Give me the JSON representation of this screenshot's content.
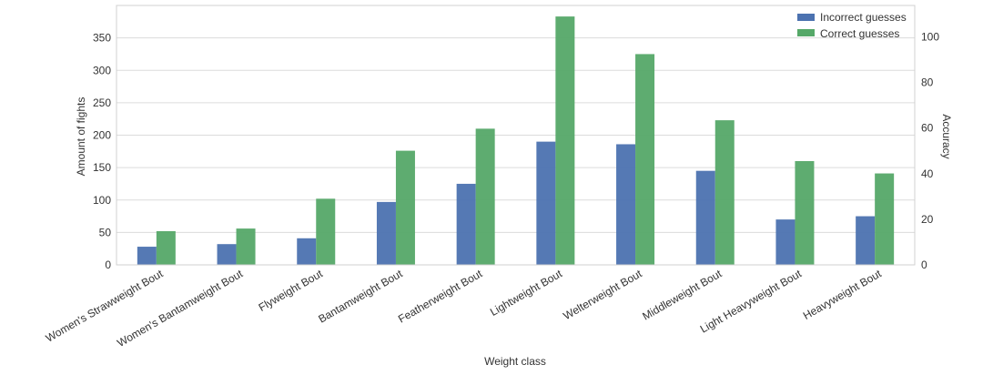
{
  "chart_data": {
    "type": "bar",
    "title": "",
    "xlabel": "Weight class",
    "ylabel": "Amount of fights",
    "y2label": "Accuracy",
    "categories": [
      "Women's Strawweight Bout",
      "Women's Bantamweight Bout",
      "Flyweight Bout",
      "Bantamweight Bout",
      "Featherweight Bout",
      "Lightweight Bout",
      "Welterweight Bout",
      "Middleweight Bout",
      "Light Heavyweight Bout",
      "Heavyweight Bout"
    ],
    "series": [
      {
        "name": "Incorrect guesses",
        "color": "#4c72b0",
        "values": [
          28,
          32,
          41,
          97,
          125,
          190,
          186,
          145,
          70,
          75
        ]
      },
      {
        "name": "Correct guesses",
        "color": "#55a868",
        "values": [
          52,
          56,
          102,
          176,
          210,
          383,
          325,
          223,
          160,
          141
        ]
      }
    ],
    "ylim": [
      0,
      400
    ],
    "yticks": [
      0,
      50,
      100,
      150,
      200,
      250,
      300,
      350
    ],
    "y2lim": [
      0,
      113.8
    ],
    "y2ticks": [
      0,
      20,
      40,
      60,
      80,
      100
    ],
    "grid": true,
    "legend_position": "top-right"
  }
}
